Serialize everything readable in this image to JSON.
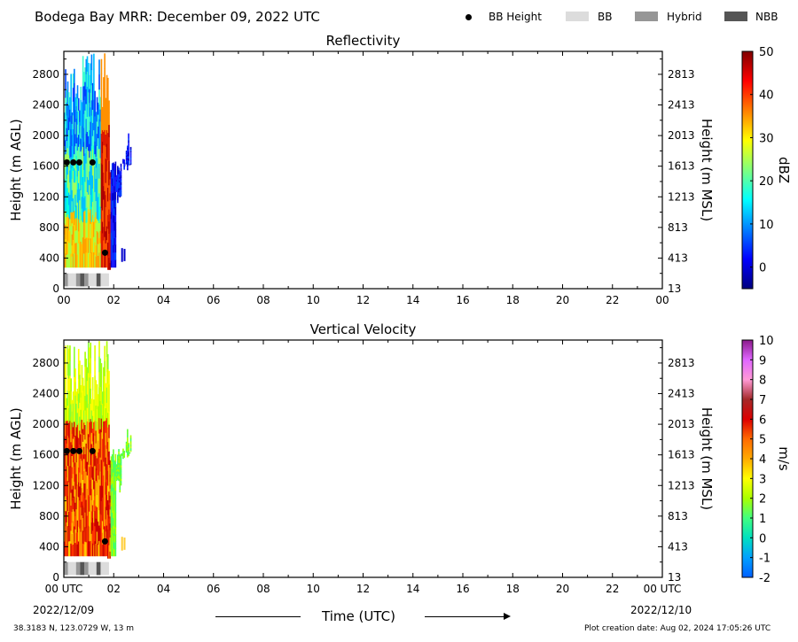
{
  "header": {
    "title": "Bodega Bay MRR:  December 09, 2022 UTC",
    "legend": [
      {
        "label": "BB Height",
        "kind": "dot",
        "color": "#000000"
      },
      {
        "label": "BB",
        "kind": "rect",
        "color": "#dcdcdc"
      },
      {
        "label": "Hybrid",
        "kind": "rect",
        "color": "#969696"
      },
      {
        "label": "NBB",
        "kind": "rect",
        "color": "#555555"
      }
    ]
  },
  "footer": {
    "location": "38.3183 N, 123.0729 W, 13 m",
    "creation": "Plot creation date: Aug 02, 2024 17:05:26 UTC",
    "start_date": "2022/12/09",
    "end_date": "2022/12/10",
    "xlabel": "Time (UTC)"
  },
  "chart_data": [
    {
      "type": "heatmap",
      "title": "Reflectivity",
      "ylabel": "Height (m AGL)",
      "ylabel_right": "Height (m MSL)",
      "xticks": [
        "00",
        "02",
        "04",
        "06",
        "08",
        "10",
        "12",
        "14",
        "16",
        "18",
        "20",
        "22",
        "00"
      ],
      "yticks": [
        0,
        400,
        800,
        1200,
        1600,
        2000,
        2400,
        2800
      ],
      "yticks_right": [
        "13",
        "413",
        "813",
        "1213",
        "1613",
        "2013",
        "2413",
        "2813"
      ],
      "ylim": [
        0,
        3100
      ],
      "xlim_hours": [
        0,
        24
      ],
      "data_extent_hours": [
        0,
        2.7
      ],
      "bb_height_points": [
        {
          "t": 0.12,
          "h": 1650
        },
        {
          "t": 0.38,
          "h": 1650
        },
        {
          "t": 0.62,
          "h": 1650
        },
        {
          "t": 1.15,
          "h": 1650
        },
        {
          "t": 1.65,
          "h": 470
        }
      ],
      "bb_type_strip": [
        "Hybrid",
        "BB",
        "BB",
        "Hybrid",
        "NBB",
        "Hybrid",
        "BB",
        "BB",
        "NBB",
        "BB",
        "BB"
      ],
      "colorbar": {
        "label": "dBZ",
        "ticks": [
          "50",
          "40",
          "30",
          "20",
          "10",
          "0"
        ],
        "range": [
          -5,
          50
        ],
        "colors": [
          "#7f0000",
          "#ff0000",
          "#ff7f00",
          "#ffff00",
          "#7fff7f",
          "#00ffff",
          "#007fff",
          "#0000ff",
          "#00007f"
        ]
      }
    },
    {
      "type": "heatmap",
      "title": "Vertical Velocity",
      "ylabel": "Height (m AGL)",
      "ylabel_right": "Height (m MSL)",
      "xticks": [
        "00 UTC",
        "02",
        "04",
        "06",
        "08",
        "10",
        "12",
        "14",
        "16",
        "18",
        "20",
        "22",
        "00 UTC"
      ],
      "yticks": [
        0,
        400,
        800,
        1200,
        1600,
        2000,
        2400,
        2800
      ],
      "yticks_right": [
        "13",
        "413",
        "813",
        "1213",
        "1613",
        "2013",
        "2413",
        "2813"
      ],
      "ylim": [
        0,
        3100
      ],
      "xlim_hours": [
        0,
        24
      ],
      "data_extent_hours": [
        0,
        2.7
      ],
      "bb_height_points": [
        {
          "t": 0.12,
          "h": 1650
        },
        {
          "t": 0.38,
          "h": 1650
        },
        {
          "t": 0.62,
          "h": 1650
        },
        {
          "t": 1.15,
          "h": 1650
        },
        {
          "t": 1.65,
          "h": 470
        }
      ],
      "bb_type_strip": [
        "Hybrid",
        "BB",
        "BB",
        "Hybrid",
        "NBB",
        "Hybrid",
        "BB",
        "BB",
        "NBB",
        "BB",
        "BB"
      ],
      "colorbar": {
        "label": "m/s",
        "ticks": [
          "10",
          "9",
          "8",
          "7",
          "6",
          "5",
          "4",
          "3",
          "2",
          "1",
          "0",
          "-1",
          "-2"
        ],
        "range": [
          -2,
          10
        ],
        "colors": [
          "#8b1a8b",
          "#e066ff",
          "#ff9ad6",
          "#a52a2a",
          "#dd0000",
          "#ff6a00",
          "#ffaa00",
          "#ffff00",
          "#aaff00",
          "#40ff80",
          "#00e0c0",
          "#00a0ff",
          "#0060ff"
        ]
      }
    }
  ]
}
